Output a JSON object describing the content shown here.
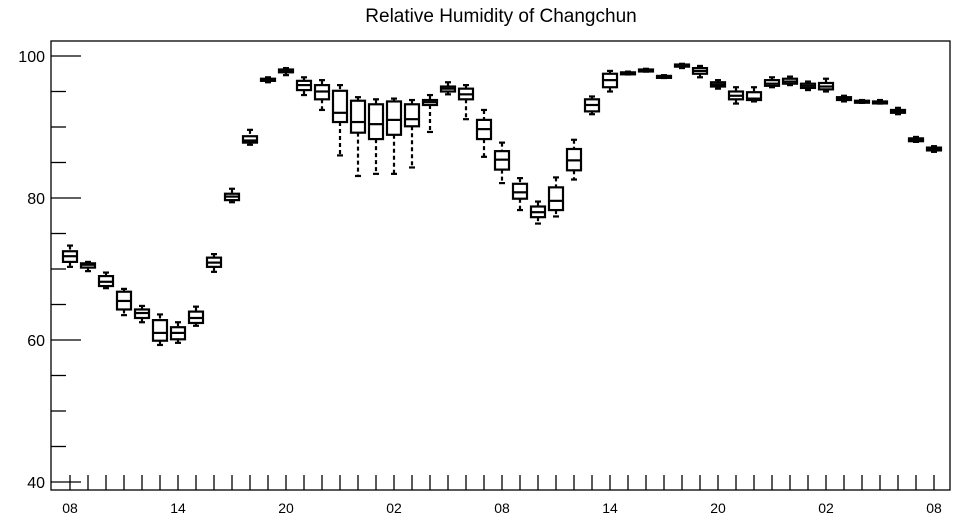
{
  "chart_data": {
    "type": "box",
    "title": "Relative Humidity of Changchun",
    "xlabel": "",
    "ylabel": "",
    "ylim": [
      40,
      100
    ],
    "yticks": [
      40,
      60,
      80,
      100
    ],
    "grid": false,
    "x_tick_labels": [
      "08",
      "14",
      "20",
      "02",
      "08",
      "14",
      "20",
      "02",
      "08"
    ],
    "x_tick_label_slots": [
      0,
      6,
      12,
      18,
      24,
      30,
      36,
      42,
      48
    ],
    "boxes": [
      {
        "slot": 0,
        "min": 70.3,
        "q1": 71.0,
        "median": 71.8,
        "q3": 72.5,
        "max": 73.3
      },
      {
        "slot": 1,
        "min": 69.7,
        "q1": 70.2,
        "median": 70.6,
        "q3": 70.8,
        "max": 71.0
      },
      {
        "slot": 2,
        "min": 67.3,
        "q1": 67.6,
        "median": 68.2,
        "q3": 69.0,
        "max": 69.5
      },
      {
        "slot": 3,
        "min": 63.5,
        "q1": 64.3,
        "median": 65.5,
        "q3": 66.8,
        "max": 67.2
      },
      {
        "slot": 4,
        "min": 62.5,
        "q1": 63.1,
        "median": 63.8,
        "q3": 64.3,
        "max": 64.8
      },
      {
        "slot": 5,
        "min": 59.3,
        "q1": 59.9,
        "median": 61.0,
        "q3": 62.8,
        "max": 63.6
      },
      {
        "slot": 6,
        "min": 59.6,
        "q1": 60.1,
        "median": 61.0,
        "q3": 61.8,
        "max": 62.5
      },
      {
        "slot": 7,
        "min": 62.0,
        "q1": 62.4,
        "median": 63.1,
        "q3": 64.0,
        "max": 64.7
      },
      {
        "slot": 8,
        "min": 69.6,
        "q1": 70.3,
        "median": 70.9,
        "q3": 71.6,
        "max": 72.1
      },
      {
        "slot": 9,
        "min": 79.4,
        "q1": 79.7,
        "median": 80.2,
        "q3": 80.6,
        "max": 81.3
      },
      {
        "slot": 10,
        "min": 87.5,
        "q1": 87.8,
        "median": 88.1,
        "q3": 88.7,
        "max": 89.6
      },
      {
        "slot": 11,
        "min": 96.3,
        "q1": 96.5,
        "median": 96.6,
        "q3": 96.8,
        "max": 97.0
      },
      {
        "slot": 12,
        "min": 97.3,
        "q1": 97.7,
        "median": 97.9,
        "q3": 98.1,
        "max": 98.3
      },
      {
        "slot": 13,
        "min": 94.5,
        "q1": 95.2,
        "median": 95.9,
        "q3": 96.5,
        "max": 97.0
      },
      {
        "slot": 14,
        "min": 92.4,
        "q1": 93.9,
        "median": 95.0,
        "q3": 95.9,
        "max": 96.6
      },
      {
        "slot": 15,
        "min": 86.0,
        "q1": 90.7,
        "median": 92.0,
        "q3": 95.1,
        "max": 95.9
      },
      {
        "slot": 16,
        "min": 83.1,
        "q1": 89.2,
        "median": 90.7,
        "q3": 93.7,
        "max": 94.2
      },
      {
        "slot": 17,
        "min": 83.4,
        "q1": 88.3,
        "median": 90.4,
        "q3": 93.2,
        "max": 93.9
      },
      {
        "slot": 18,
        "min": 83.4,
        "q1": 88.9,
        "median": 91.0,
        "q3": 93.6,
        "max": 94.0
      },
      {
        "slot": 19,
        "min": 84.3,
        "q1": 90.1,
        "median": 91.1,
        "q3": 93.2,
        "max": 93.8
      },
      {
        "slot": 20,
        "min": 89.3,
        "q1": 93.1,
        "median": 93.5,
        "q3": 93.8,
        "max": 94.5
      },
      {
        "slot": 21,
        "min": 94.6,
        "q1": 95.0,
        "median": 95.4,
        "q3": 95.7,
        "max": 96.3
      },
      {
        "slot": 22,
        "min": 91.1,
        "q1": 93.9,
        "median": 94.6,
        "q3": 95.4,
        "max": 95.9
      },
      {
        "slot": 23,
        "min": 85.8,
        "q1": 88.3,
        "median": 89.7,
        "q3": 91.0,
        "max": 92.4
      },
      {
        "slot": 24,
        "min": 82.1,
        "q1": 84.0,
        "median": 85.4,
        "q3": 86.6,
        "max": 87.8
      },
      {
        "slot": 25,
        "min": 78.3,
        "q1": 79.9,
        "median": 80.8,
        "q3": 82.0,
        "max": 82.8
      },
      {
        "slot": 26,
        "min": 76.4,
        "q1": 77.3,
        "median": 78.0,
        "q3": 78.8,
        "max": 79.5
      },
      {
        "slot": 27,
        "min": 77.4,
        "q1": 78.3,
        "median": 79.6,
        "q3": 81.5,
        "max": 82.9
      },
      {
        "slot": 28,
        "min": 82.6,
        "q1": 83.9,
        "median": 85.3,
        "q3": 86.9,
        "max": 88.2
      },
      {
        "slot": 29,
        "min": 91.8,
        "q1": 92.2,
        "median": 93.1,
        "q3": 93.9,
        "max": 94.3
      },
      {
        "slot": 30,
        "min": 95.0,
        "q1": 95.6,
        "median": 96.6,
        "q3": 97.5,
        "max": 97.9
      },
      {
        "slot": 31,
        "min": 97.4,
        "q1": 97.5,
        "median": 97.6,
        "q3": 97.7,
        "max": 97.8
      },
      {
        "slot": 32,
        "min": 97.8,
        "q1": 97.9,
        "median": 98.0,
        "q3": 98.1,
        "max": 98.2
      },
      {
        "slot": 33,
        "min": 96.9,
        "q1": 97.0,
        "median": 97.1,
        "q3": 97.2,
        "max": 97.3
      },
      {
        "slot": 34,
        "min": 98.3,
        "q1": 98.5,
        "median": 98.7,
        "q3": 98.8,
        "max": 98.9
      },
      {
        "slot": 35,
        "min": 97.0,
        "q1": 97.5,
        "median": 97.9,
        "q3": 98.3,
        "max": 98.6
      },
      {
        "slot": 36,
        "min": 95.4,
        "q1": 95.7,
        "median": 96.0,
        "q3": 96.3,
        "max": 96.6
      },
      {
        "slot": 37,
        "min": 93.3,
        "q1": 93.9,
        "median": 94.4,
        "q3": 95.0,
        "max": 95.6
      },
      {
        "slot": 38,
        "min": 93.6,
        "q1": 93.8,
        "median": 94.0,
        "q3": 94.9,
        "max": 95.6
      },
      {
        "slot": 39,
        "min": 95.6,
        "q1": 95.8,
        "median": 96.1,
        "q3": 96.6,
        "max": 97.0
      },
      {
        "slot": 40,
        "min": 95.9,
        "q1": 96.1,
        "median": 96.4,
        "q3": 96.8,
        "max": 97.1
      },
      {
        "slot": 41,
        "min": 95.2,
        "q1": 95.5,
        "median": 95.8,
        "q3": 96.1,
        "max": 96.4
      },
      {
        "slot": 42,
        "min": 95.0,
        "q1": 95.3,
        "median": 95.7,
        "q3": 96.2,
        "max": 96.8
      },
      {
        "slot": 43,
        "min": 93.6,
        "q1": 93.8,
        "median": 94.0,
        "q3": 94.2,
        "max": 94.4
      },
      {
        "slot": 44,
        "min": 93.4,
        "q1": 93.5,
        "median": 93.6,
        "q3": 93.7,
        "max": 93.8
      },
      {
        "slot": 45,
        "min": 93.3,
        "q1": 93.4,
        "median": 93.5,
        "q3": 93.6,
        "max": 93.8
      },
      {
        "slot": 46,
        "min": 91.8,
        "q1": 92.0,
        "median": 92.2,
        "q3": 92.4,
        "max": 92.7
      },
      {
        "slot": 47,
        "min": 87.9,
        "q1": 88.0,
        "median": 88.2,
        "q3": 88.4,
        "max": 88.6
      },
      {
        "slot": 48,
        "min": 86.5,
        "q1": 86.7,
        "median": 86.9,
        "q3": 87.1,
        "max": 87.3
      }
    ],
    "colors": {
      "box": "#000000",
      "fill": "#ffffff",
      "background": "#ffffff"
    }
  }
}
